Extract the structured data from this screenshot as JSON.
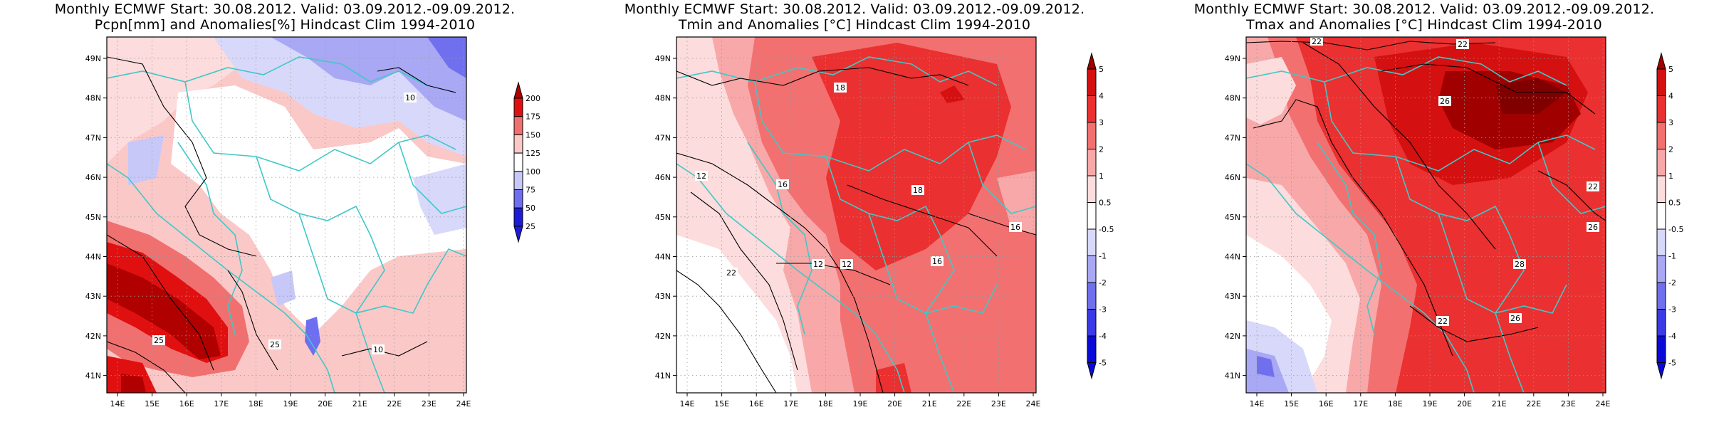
{
  "panels": [
    {
      "title_line1": "Monthly ECMWF Start: 30.08.2012. Valid: 03.09.2012.-09.09.2012.",
      "title_line2": "Pcpn[mm] and Anomalies[%] Hindcast Clim 1994-2010",
      "colorbar_labels": [
        "200",
        "175",
        "150",
        "125",
        "100",
        "75",
        "50",
        "25"
      ],
      "colorbar_colors": [
        "#b00000",
        "#e01010",
        "#f07070",
        "#fbc8c8",
        "#ffffff",
        "#c8c8f8",
        "#6e6ef0",
        "#1c1cd8"
      ],
      "contour_labels": [
        "10",
        "25",
        "25",
        "10"
      ]
    },
    {
      "title_line1": "Monthly ECMWF Start: 30.08.2012. Valid: 03.09.2012.-09.09.2012.",
      "title_line2": "Tmin and Anomalies [°C] Hindcast Clim 1994-2010",
      "colorbar_labels": [
        "5",
        "4",
        "3",
        "2",
        "1",
        "0.5",
        "-0.5",
        "-1",
        "-2",
        "-3",
        "-4",
        "-5"
      ],
      "colorbar_colors": [
        "#a00000",
        "#d41010",
        "#ea3030",
        "#f27070",
        "#f8a8a8",
        "#fcdcdc",
        "#ffffff",
        "#d8d8fb",
        "#a8a8f4",
        "#7070ee",
        "#3a3ae6",
        "#0a0ad8"
      ],
      "contour_labels": [
        "18",
        "12",
        "16",
        "18",
        "16",
        "12",
        "12",
        "16",
        "22"
      ]
    },
    {
      "title_line1": "Monthly ECMWF Start: 30.08.2012. Valid: 03.09.2012.-09.09.2012.",
      "title_line2": "Tmax and Anomalies [°C] Hindcast Clim 1994-2010",
      "colorbar_labels": [
        "5",
        "4",
        "3",
        "2",
        "1",
        "0.5",
        "-0.5",
        "-1",
        "-2",
        "-3",
        "-4",
        "-5"
      ],
      "colorbar_colors": [
        "#a00000",
        "#d41010",
        "#ea3030",
        "#f27070",
        "#f8a8a8",
        "#fcdcdc",
        "#ffffff",
        "#d8d8fb",
        "#a8a8f4",
        "#7070ee",
        "#3a3ae6",
        "#0a0ad8"
      ],
      "contour_labels": [
        "22",
        "22",
        "26",
        "22",
        "26",
        "28",
        "22",
        "26"
      ]
    }
  ],
  "map": {
    "lat_labels": [
      "49N",
      "48N",
      "47N",
      "46N",
      "45N",
      "44N",
      "43N",
      "42N",
      "41N"
    ],
    "lon_labels": [
      "14E",
      "15E",
      "16E",
      "17E",
      "18E",
      "19E",
      "20E",
      "21E",
      "22E",
      "23E",
      "24E"
    ]
  }
}
